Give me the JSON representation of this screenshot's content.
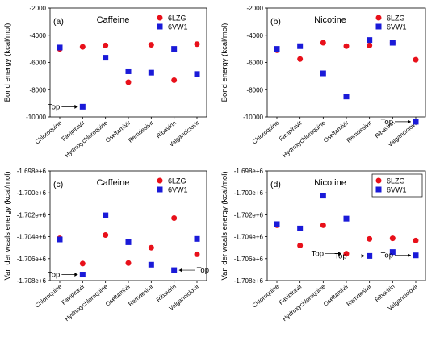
{
  "legend_marker_colors": {
    "6LZG": "#e8101a",
    "6VW1": "#1a1ad8"
  },
  "chart_data": [
    {
      "type": "scatter",
      "panel_label": "(a)",
      "title": "Caffeine",
      "ylabel": "Bond energy (kcal/mol)",
      "ylim": [
        -10000,
        -2000
      ],
      "yticks": [
        -2000,
        -4000,
        -6000,
        -8000,
        -10000
      ],
      "ytick_labels": [
        "-2000",
        "-4000",
        "-6000",
        "-8000",
        "-10000"
      ],
      "categories": [
        "Chloroquine",
        "Favipiravir",
        "Hydroxychloroquine",
        "Oseltamivir",
        "Remdesivir",
        "Ribavirin",
        "Valganciclovir"
      ],
      "series": [
        {
          "name": "6LZG",
          "marker": "circle",
          "color": "#e8101a",
          "values": [
            -5000,
            -4850,
            -4750,
            -7450,
            -4700,
            -7300,
            -4650
          ]
        },
        {
          "name": "6VW1",
          "marker": "square",
          "color": "#1a1ad8",
          "values": [
            -4900,
            -9250,
            -5650,
            -6650,
            -6750,
            -5000,
            -6850
          ]
        }
      ],
      "legend_position": "top-right",
      "annotations": [
        {
          "text": "Top",
          "category_index": 1,
          "series": "6VW1",
          "side": "left"
        }
      ]
    },
    {
      "type": "scatter",
      "panel_label": "(b)",
      "title": "Nicotine",
      "ylabel": "Bond energy (kcal/mol)",
      "ylim": [
        -10000,
        -2000
      ],
      "yticks": [
        -2000,
        -4000,
        -6000,
        -8000,
        -10000
      ],
      "ytick_labels": [
        "-2000",
        "-4000",
        "-6000",
        "-8000",
        "-10000"
      ],
      "categories": [
        "Chloroquine",
        "Favipiravir",
        "Hydroxychloroquine",
        "Oseltamivir",
        "Remdesivir",
        "Ribavirin",
        "Valganciclovir"
      ],
      "series": [
        {
          "name": "6LZG",
          "marker": "circle",
          "color": "#e8101a",
          "values": [
            -5100,
            -5750,
            -4550,
            -4800,
            -4750,
            -4550,
            -5800
          ]
        },
        {
          "name": "6VW1",
          "marker": "square",
          "color": "#1a1ad8",
          "values": [
            -5000,
            -4800,
            -6800,
            -8500,
            -4350,
            -4550,
            -10350
          ]
        }
      ],
      "legend_position": "top-right",
      "annotations": [
        {
          "text": "Top",
          "category_index": 6,
          "series": "6VW1",
          "side": "left"
        }
      ]
    },
    {
      "type": "scatter",
      "panel_label": "(c)",
      "title": "Caffeine",
      "ylabel": "Van der waals energy (kcal/mol)",
      "ylim": [
        -1708000,
        -1698000
      ],
      "yticks": [
        -1698000,
        -1700000,
        -1702000,
        -1704000,
        -1706000,
        -1708000
      ],
      "ytick_labels": [
        "-1.698e+6",
        "-1.700e+6",
        "-1.702e+6",
        "-1.704e+6",
        "-1.706e+6",
        "-1.708e+6"
      ],
      "categories": [
        "Chloroquine",
        "Favipiravir",
        "Hydroxychloroquine",
        "Oseltamivir",
        "Remdesivir",
        "Ribavirin",
        "Valganciclovir"
      ],
      "series": [
        {
          "name": "6LZG",
          "marker": "circle",
          "color": "#e8101a",
          "values": [
            -1704150,
            -1706450,
            -1703850,
            -1706400,
            -1705000,
            -1702300,
            -1705600
          ]
        },
        {
          "name": "6VW1",
          "marker": "square",
          "color": "#1a1ad8",
          "values": [
            -1704250,
            -1707450,
            -1702050,
            -1704500,
            -1706550,
            -1707050,
            -1704200
          ]
        }
      ],
      "legend_position": "top-right",
      "annotations": [
        {
          "text": "Top",
          "category_index": 1,
          "series": "6VW1",
          "side": "left"
        },
        {
          "text": "Top",
          "category_index": 5,
          "series": "6VW1",
          "side": "right"
        }
      ]
    },
    {
      "type": "scatter",
      "panel_label": "(d)",
      "title": "Nicotine",
      "ylabel": "Van der waals energy (kcal/mol)",
      "ylim": [
        -1708000,
        -1698000
      ],
      "yticks": [
        -1698000,
        -1700000,
        -1702000,
        -1704000,
        -1706000,
        -1708000
      ],
      "ytick_labels": [
        "-1.698e+6",
        "-1.700e+6",
        "-1.702e+6",
        "-1.704e+6",
        "-1.706e+6",
        "-1.708e+6"
      ],
      "categories": [
        "Chloroquine",
        "Favipiravir",
        "Hydroxychloroquine",
        "Oseltamivir",
        "Remdesivir",
        "Ribavirin",
        "Valganciclovir"
      ],
      "series": [
        {
          "name": "6LZG",
          "marker": "circle",
          "color": "#e8101a",
          "values": [
            -1702950,
            -1704800,
            -1702950,
            -1705550,
            -1704200,
            -1704150,
            -1704350
          ]
        },
        {
          "name": "6VW1",
          "marker": "square",
          "color": "#1a1ad8",
          "values": [
            -1702850,
            -1703250,
            -1700250,
            -1702350,
            -1705750,
            -1705400,
            -1705700
          ]
        }
      ],
      "legend_position": "top-right",
      "annotations": [
        {
          "text": "Top",
          "category_index": 3,
          "series": "6LZG",
          "side": "left"
        },
        {
          "text": "Top",
          "category_index": 4,
          "series": "6VW1",
          "side": "left"
        },
        {
          "text": "Top",
          "category_index": 6,
          "series": "6VW1",
          "side": "left"
        }
      ]
    }
  ]
}
